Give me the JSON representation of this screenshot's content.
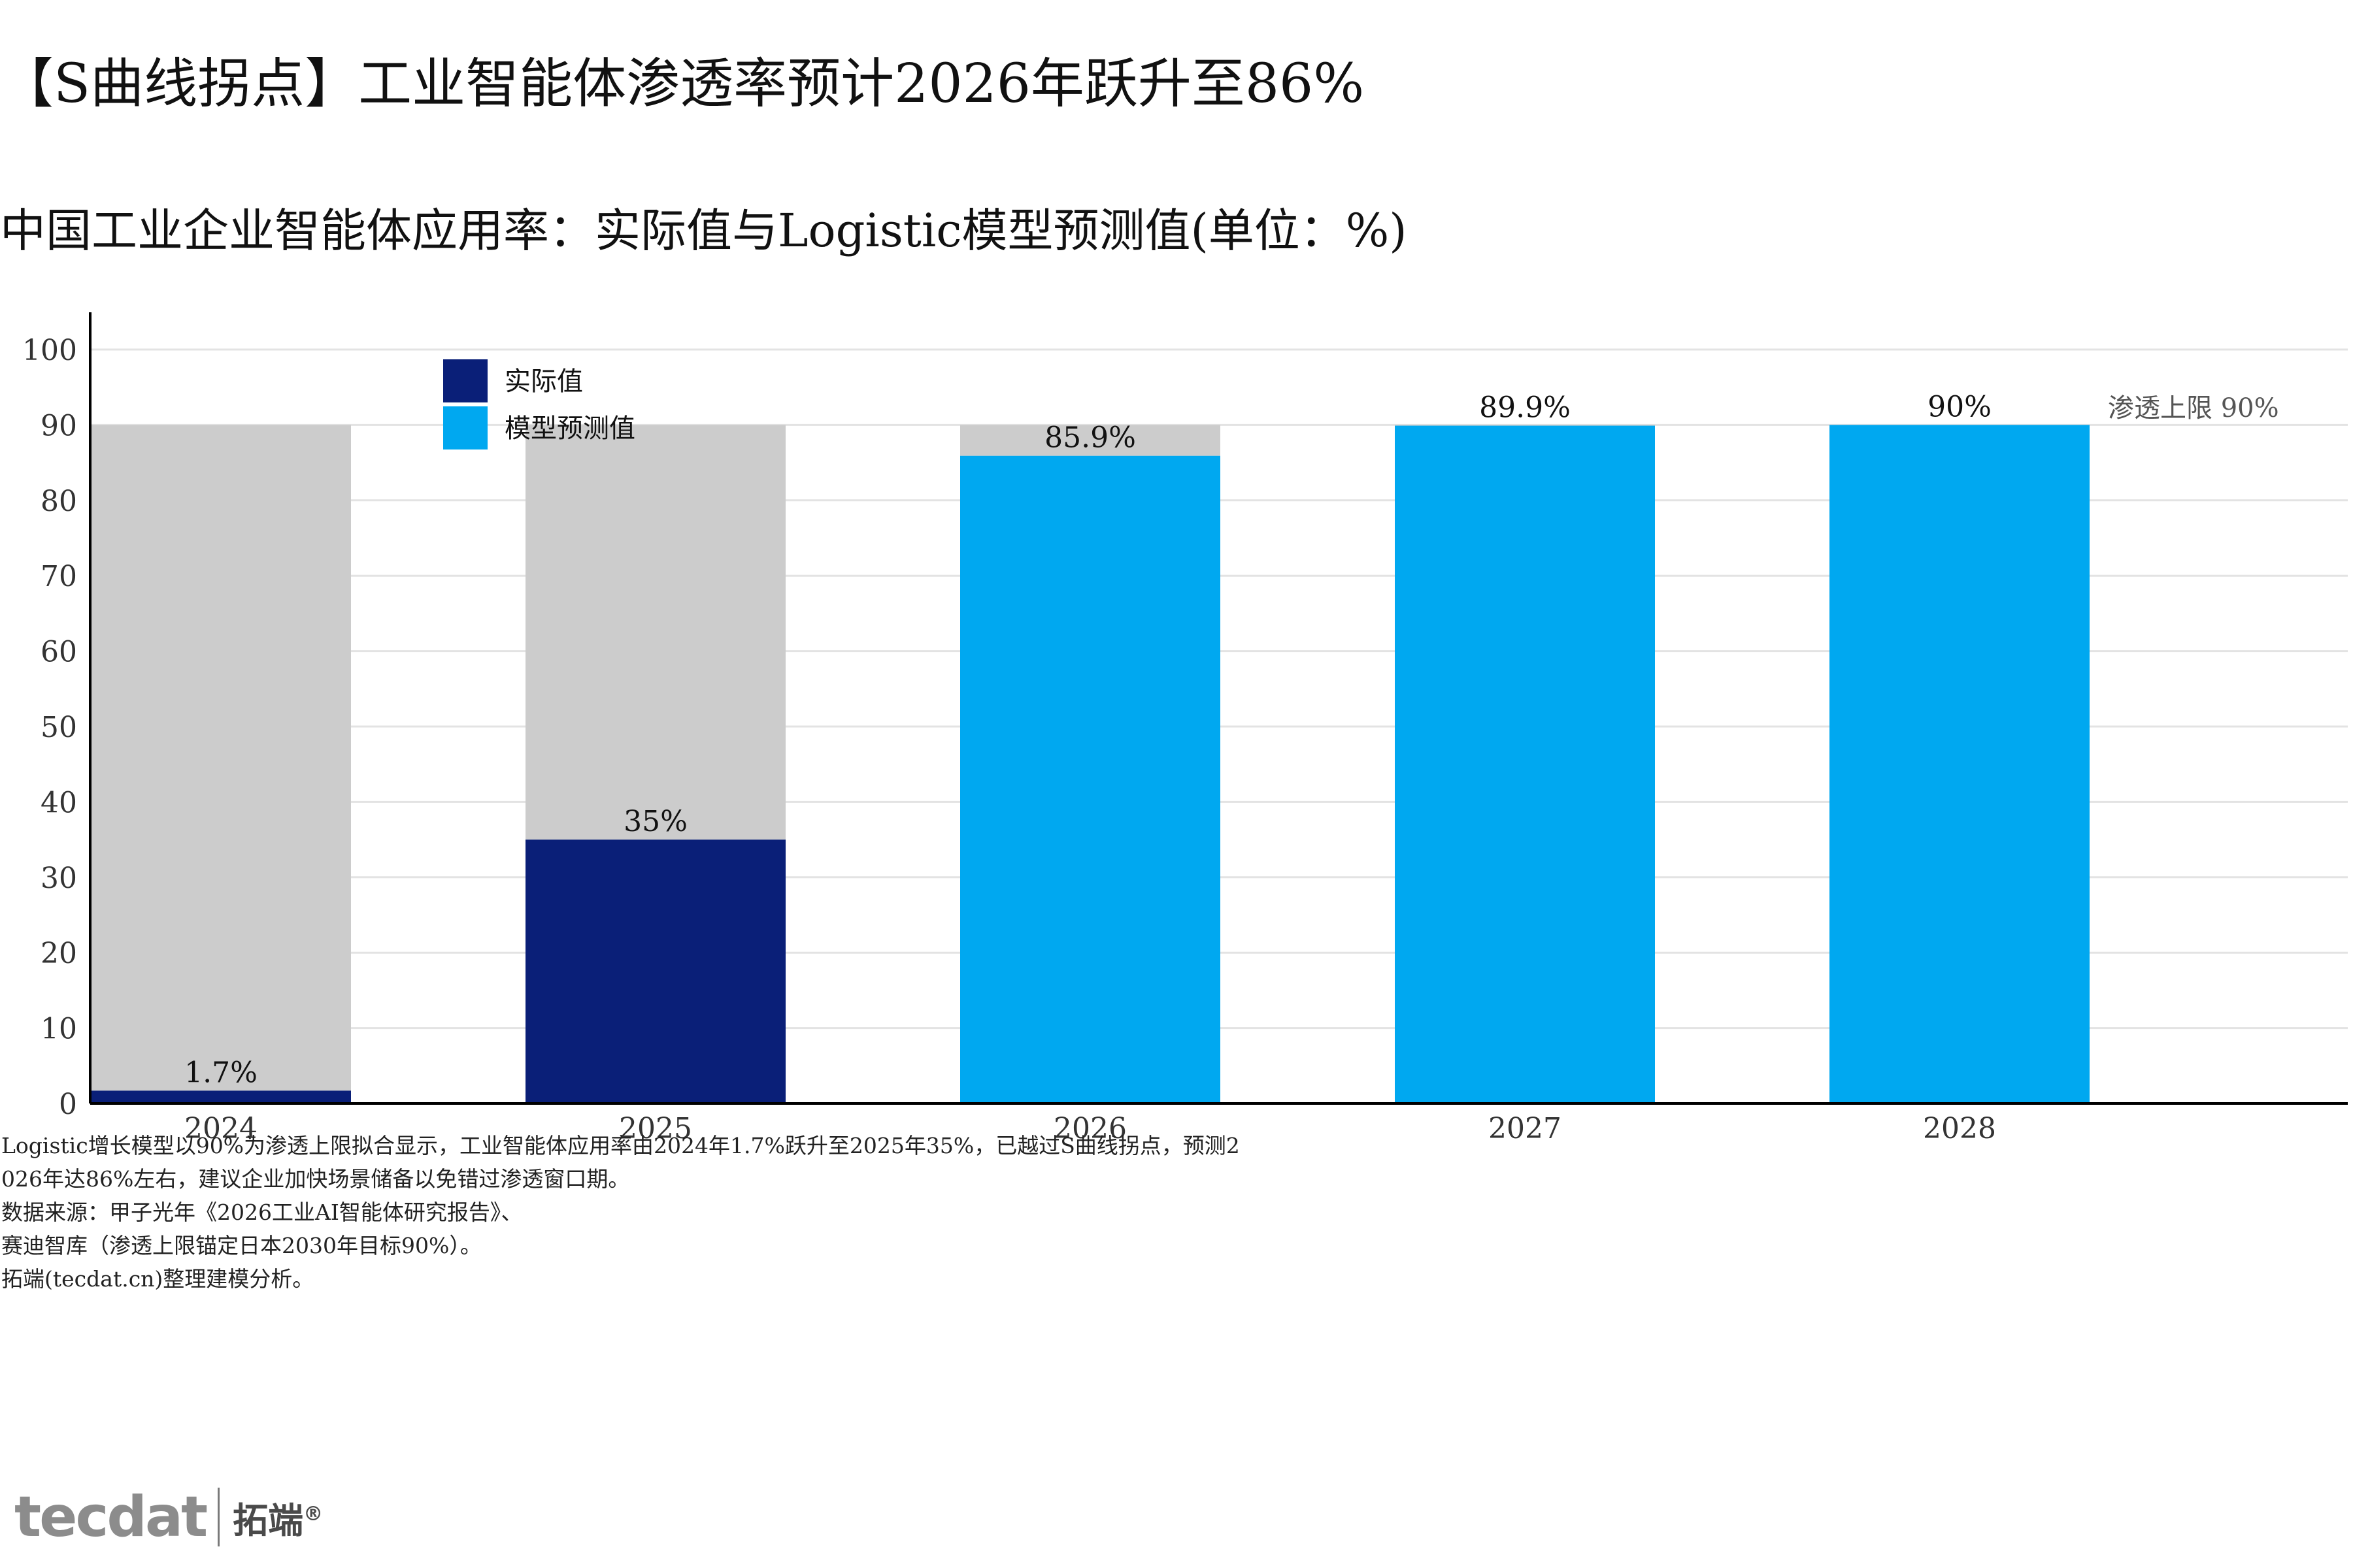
{
  "title": "【S曲线拐点】工业智能体渗透率预计2026年跃升至86%",
  "subtitle": "中国工业企业智能体应用率：实际值与Logistic模型预测值(单位：%)",
  "colors": {
    "actual": "#0a1f78",
    "forecast": "#00a8f0",
    "remainder": "#cccccc",
    "grid": "#e3e3e3",
    "axis": "#000000",
    "ceiling_label": "#555555"
  },
  "chart_data": {
    "type": "bar",
    "stacked": true,
    "categories": [
      "2024",
      "2025",
      "2026",
      "2027",
      "2028"
    ],
    "series": [
      {
        "name": "实际值",
        "color_key": "actual",
        "values": [
          1.7,
          35,
          null,
          null,
          null
        ]
      },
      {
        "name": "模型预测值",
        "color_key": "forecast",
        "values": [
          null,
          null,
          85.9,
          89.9,
          90
        ]
      }
    ],
    "ceiling": 90,
    "ceiling_label": "渗透上限 90%",
    "data_labels": [
      "1.7%",
      "35%",
      "85.9%",
      "89.9%",
      "90%"
    ],
    "ylim": [
      0,
      100
    ],
    "yticks": [
      0,
      10,
      20,
      30,
      40,
      50,
      60,
      70,
      80,
      90,
      100
    ],
    "xlabel": "",
    "ylabel": "",
    "grid": true,
    "legend_position": "top-left"
  },
  "notes": [
    "Logistic增长模型以90%为渗透上限拟合显示，工业智能体应用率由2024年1.7%跃升至2025年35%，已越过S曲线拐点，预测2",
    "026年达86%左右，建议企业加快场景储备以免错过渗透窗口期。",
    "数据来源：甲子光年《2026工业AI智能体研究报告》、",
    "赛迪智库（渗透上限锚定日本2030年目标90%）。",
    "拓端(tecdat.cn)整理建模分析。"
  ],
  "brand": {
    "logo": "tecdat",
    "name": "拓端",
    "mark": "®"
  }
}
